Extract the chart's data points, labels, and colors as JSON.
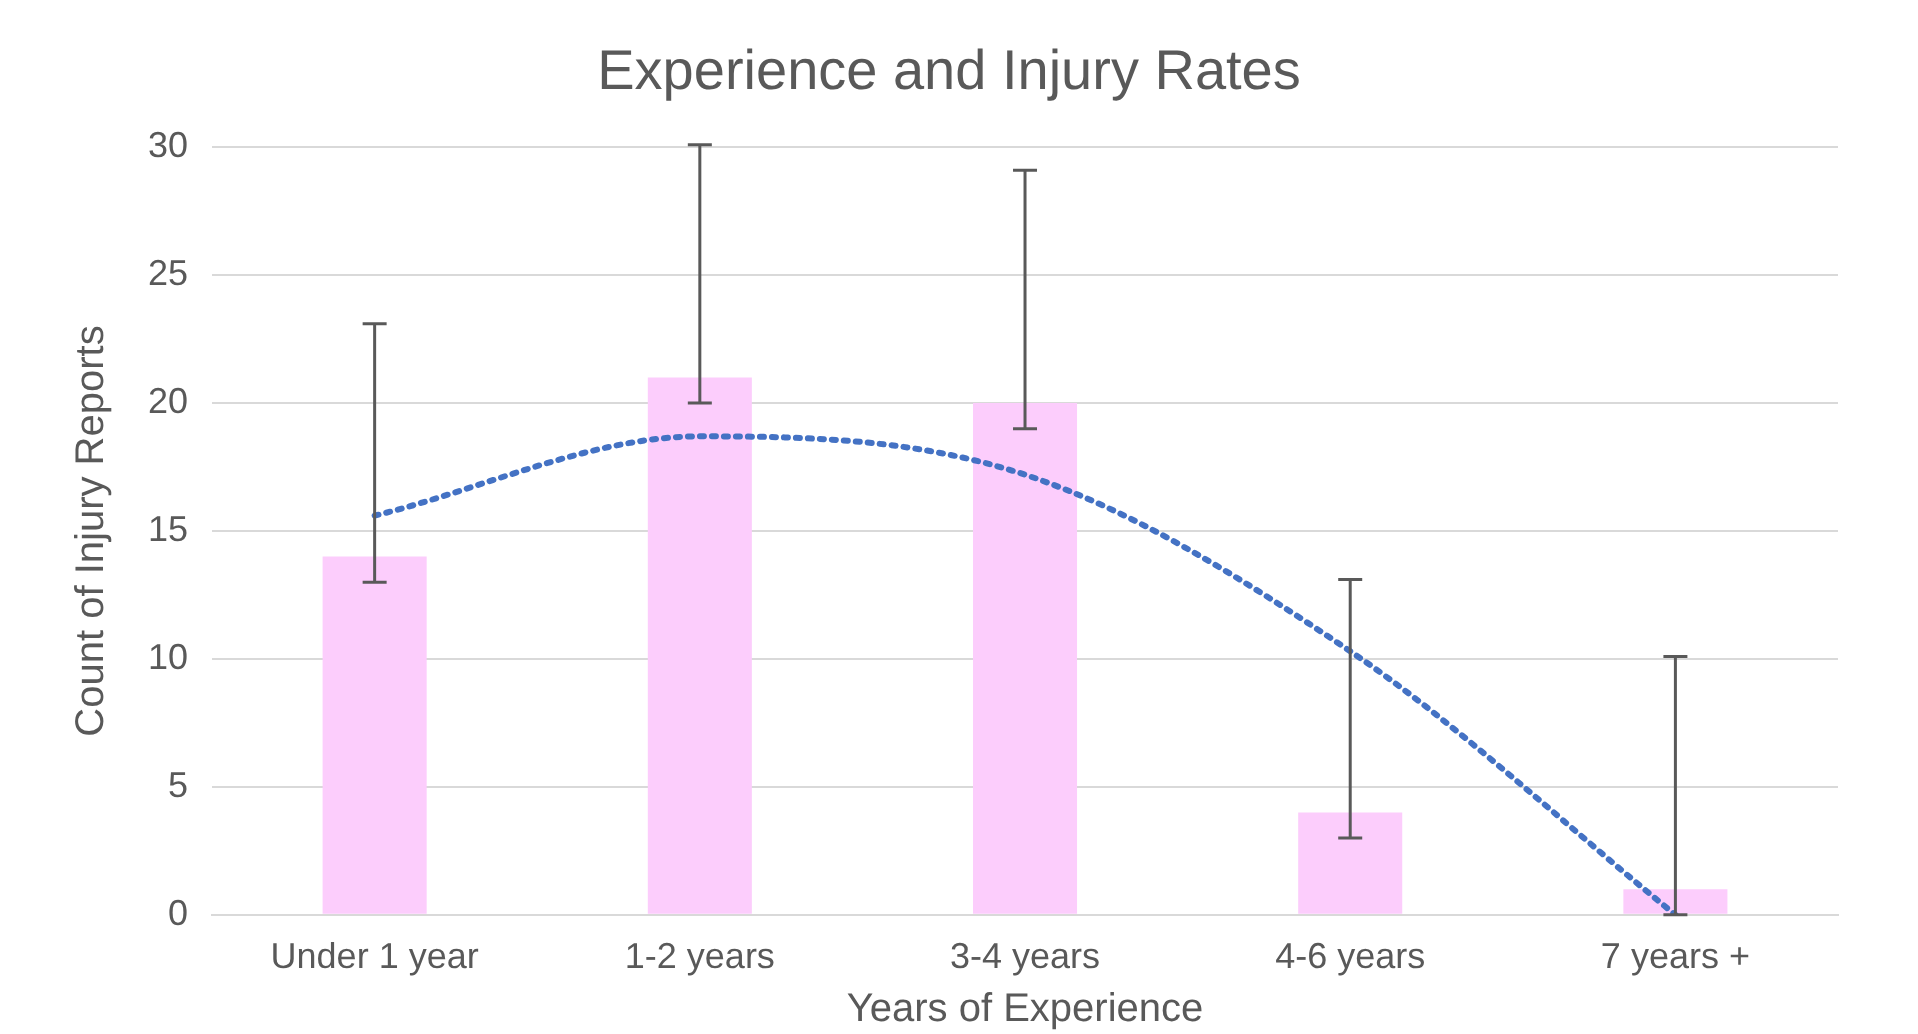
{
  "chart_data": {
    "type": "bar",
    "title": "Experience and Injury Rates",
    "xlabel": "Years of Experience",
    "ylabel": "Count of Injury Reports",
    "categories": [
      "Under 1 year",
      "1-2 years",
      "3-4 years",
      "4-6 years",
      "7 years +"
    ],
    "series": [
      {
        "color": "#fccdfc",
        "values": [
          14,
          21,
          20,
          4,
          1
        ],
        "errors": [
          [
            13,
            23.1
          ],
          [
            20,
            30.1
          ],
          [
            19,
            29.1
          ],
          [
            3,
            13.1
          ],
          [
            0,
            10.1
          ]
        ]
      },
      {
        "type": "line",
        "color": "#4472c4",
        "values": [
          15.6,
          18.7,
          17.2,
          10.3,
          0
        ],
        "line_style": "dotted",
        "marker": "none"
      }
    ],
    "ylim": [
      0,
      30
    ],
    "yticks": [
      0,
      5,
      10,
      15,
      20,
      25,
      30
    ],
    "grid": "y",
    "legend": false
  }
}
